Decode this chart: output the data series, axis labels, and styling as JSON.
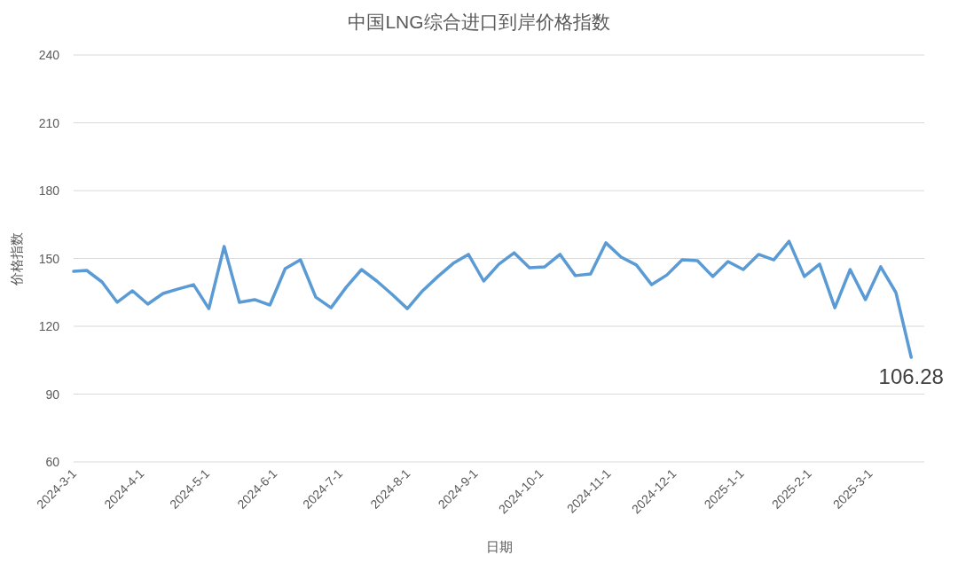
{
  "chart_data": {
    "type": "line",
    "title": "中国LNG综合进口到岸价格指数",
    "xlabel": "日期",
    "ylabel": "价格指数",
    "x": [
      "2024-03-01",
      "2024-03-07",
      "2024-03-14",
      "2024-03-21",
      "2024-03-28",
      "2024-04-04",
      "2024-04-11",
      "2024-04-18",
      "2024-04-25",
      "2024-05-02",
      "2024-05-09",
      "2024-05-16",
      "2024-05-23",
      "2024-05-30",
      "2024-06-06",
      "2024-06-13",
      "2024-06-20",
      "2024-06-27",
      "2024-07-04",
      "2024-07-11",
      "2024-07-18",
      "2024-07-25",
      "2024-08-01",
      "2024-08-08",
      "2024-08-15",
      "2024-08-22",
      "2024-08-29",
      "2024-09-05",
      "2024-09-12",
      "2024-09-19",
      "2024-09-26",
      "2024-10-03",
      "2024-10-10",
      "2024-10-17",
      "2024-10-24",
      "2024-10-31",
      "2024-11-07",
      "2024-11-14",
      "2024-11-21",
      "2024-11-28",
      "2024-12-05",
      "2024-12-12",
      "2024-12-19",
      "2024-12-26",
      "2025-01-02",
      "2025-01-09",
      "2025-01-16",
      "2025-01-23",
      "2025-01-30",
      "2025-02-06",
      "2025-02-13",
      "2025-02-20",
      "2025-02-27",
      "2025-03-06",
      "2025-03-13",
      "2025-03-20"
    ],
    "series": [
      {
        "color": "#5b9bd5",
        "values": [
          144.3,
          144.7,
          139.6,
          130.6,
          135.7,
          129.8,
          134.5,
          136.5,
          138.4,
          127.8,
          155.3,
          130.6,
          131.8,
          129.4,
          145.5,
          149.4,
          132.9,
          128.2,
          137.3,
          145.1,
          140.0,
          134.1,
          127.8,
          135.7,
          142.0,
          147.8,
          151.8,
          140.0,
          147.5,
          152.5,
          145.9,
          146.3,
          151.8,
          142.4,
          143.1,
          156.9,
          150.6,
          147.1,
          138.4,
          142.7,
          149.4,
          149.0,
          142.0,
          148.6,
          145.1,
          151.8,
          149.4,
          157.6,
          142.0,
          147.5,
          128.2,
          145.1,
          131.8,
          146.3,
          134.9,
          106.28
        ]
      }
    ],
    "annotations": [
      {
        "text": "106.28",
        "x": "2025-03-20",
        "y": 106.28
      }
    ],
    "xlim": [
      "2024-03-01",
      "2025-03-26"
    ],
    "xticks": [
      {
        "value": "2024-03-01",
        "label": "2024-3-1"
      },
      {
        "value": "2024-04-01",
        "label": "2024-4-1"
      },
      {
        "value": "2024-05-01",
        "label": "2024-5-1"
      },
      {
        "value": "2024-06-01",
        "label": "2024-6-1"
      },
      {
        "value": "2024-07-01",
        "label": "2024-7-1"
      },
      {
        "value": "2024-08-01",
        "label": "2024-8-1"
      },
      {
        "value": "2024-09-01",
        "label": "2024-9-1"
      },
      {
        "value": "2024-10-01",
        "label": "2024-10-1"
      },
      {
        "value": "2024-11-01",
        "label": "2024-11-1"
      },
      {
        "value": "2024-12-01",
        "label": "2024-12-1"
      },
      {
        "value": "2025-01-01",
        "label": "2025-1-1"
      },
      {
        "value": "2025-02-01",
        "label": "2025-2-1"
      },
      {
        "value": "2025-03-01",
        "label": "2025-3-1"
      }
    ],
    "ylim": [
      60,
      240
    ],
    "yticks": [
      60,
      90,
      120,
      150,
      180,
      210,
      240
    ],
    "grid": "y"
  }
}
